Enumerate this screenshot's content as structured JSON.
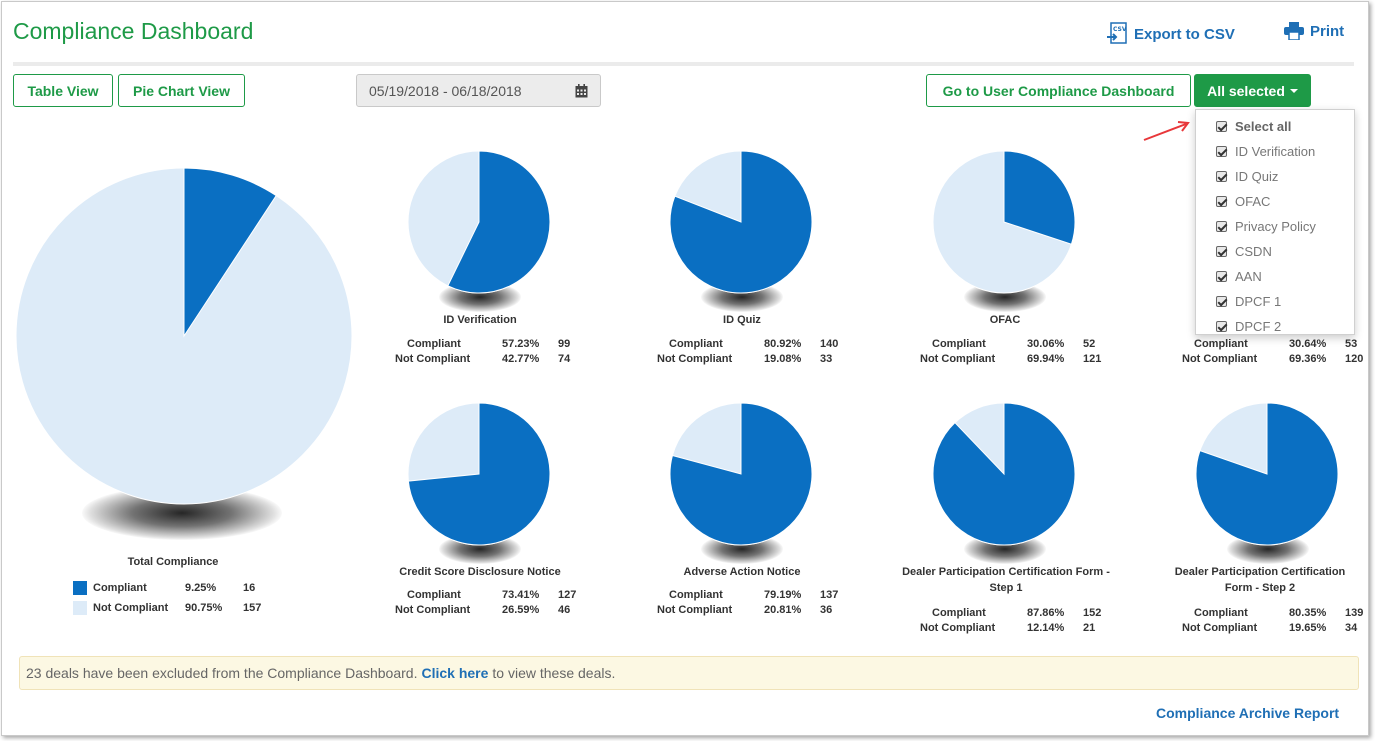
{
  "header": {
    "title": "Compliance Dashboard",
    "export_label": "Export to CSV",
    "export_icon": "csv-file-icon",
    "print_label": "Print",
    "print_icon": "printer-icon"
  },
  "toolbar": {
    "table_view_label": "Table View",
    "pie_chart_view_label": "Pie Chart View",
    "date_range": "05/19/2018 - 06/18/2018",
    "calendar_icon": "calendar-icon",
    "user_dashboard_label": "Go to User Compliance Dashboard",
    "filter_label": "All selected"
  },
  "filter_menu": {
    "items": [
      {
        "label": "Select all",
        "checked": true
      },
      {
        "label": "ID Verification",
        "checked": true
      },
      {
        "label": "ID Quiz",
        "checked": true
      },
      {
        "label": "OFAC",
        "checked": true
      },
      {
        "label": "Privacy Policy",
        "checked": true
      },
      {
        "label": "CSDN",
        "checked": true
      },
      {
        "label": "AAN",
        "checked": true
      },
      {
        "label": "DPCF 1",
        "checked": true
      },
      {
        "label": "DPCF 2",
        "checked": true
      }
    ]
  },
  "colors": {
    "brand_green": "#1e9a47",
    "compliant": "#0a6fc2",
    "not_compliant": "#ddebf8",
    "link_blue": "#1f6fb5",
    "notice_bg": "#fcf8e3"
  },
  "row_labels": {
    "compliant": "Compliant",
    "not_compliant": "Not Compliant"
  },
  "chart_data": [
    {
      "type": "pie",
      "title": "Total Compliance",
      "series": [
        {
          "name": "Compliant",
          "percent": "9.25%",
          "value": 16
        },
        {
          "name": "Not Compliant",
          "percent": "90.75%",
          "value": 157
        }
      ]
    },
    {
      "type": "pie",
      "title": "ID Verification",
      "series": [
        {
          "name": "Compliant",
          "percent": "57.23%",
          "value": 99
        },
        {
          "name": "Not Compliant",
          "percent": "42.77%",
          "value": 74
        }
      ]
    },
    {
      "type": "pie",
      "title": "ID Quiz",
      "series": [
        {
          "name": "Compliant",
          "percent": "80.92%",
          "value": 140
        },
        {
          "name": "Not Compliant",
          "percent": "19.08%",
          "value": 33
        }
      ]
    },
    {
      "type": "pie",
      "title": "OFAC",
      "series": [
        {
          "name": "Compliant",
          "percent": "30.06%",
          "value": 52
        },
        {
          "name": "Not Compliant",
          "percent": "69.94%",
          "value": 121
        }
      ]
    },
    {
      "type": "pie",
      "title": "",
      "series": [
        {
          "name": "Compliant",
          "percent": "30.64%",
          "value": 53
        },
        {
          "name": "Not Compliant",
          "percent": "69.36%",
          "value": 120
        }
      ]
    },
    {
      "type": "pie",
      "title": "Credit Score Disclosure Notice",
      "series": [
        {
          "name": "Compliant",
          "percent": "73.41%",
          "value": 127
        },
        {
          "name": "Not Compliant",
          "percent": "26.59%",
          "value": 46
        }
      ]
    },
    {
      "type": "pie",
      "title": "Adverse Action Notice",
      "series": [
        {
          "name": "Compliant",
          "percent": "79.19%",
          "value": 137
        },
        {
          "name": "Not Compliant",
          "percent": "20.81%",
          "value": 36
        }
      ]
    },
    {
      "type": "pie",
      "title": "Dealer Participation Certification Form - Step 1",
      "series": [
        {
          "name": "Compliant",
          "percent": "87.86%",
          "value": 152
        },
        {
          "name": "Not Compliant",
          "percent": "12.14%",
          "value": 21
        }
      ]
    },
    {
      "type": "pie",
      "title": "Dealer Participation Certification Form -  Step 2",
      "series": [
        {
          "name": "Compliant",
          "percent": "80.35%",
          "value": 139
        },
        {
          "name": "Not Compliant",
          "percent": "19.65%",
          "value": 34
        }
      ]
    }
  ],
  "notice": {
    "text_before": "23 deals have been excluded from the Compliance Dashboard.",
    "link_label": "Click here",
    "text_after": "to view these deals."
  },
  "footer": {
    "archive_link": "Compliance Archive Report"
  }
}
